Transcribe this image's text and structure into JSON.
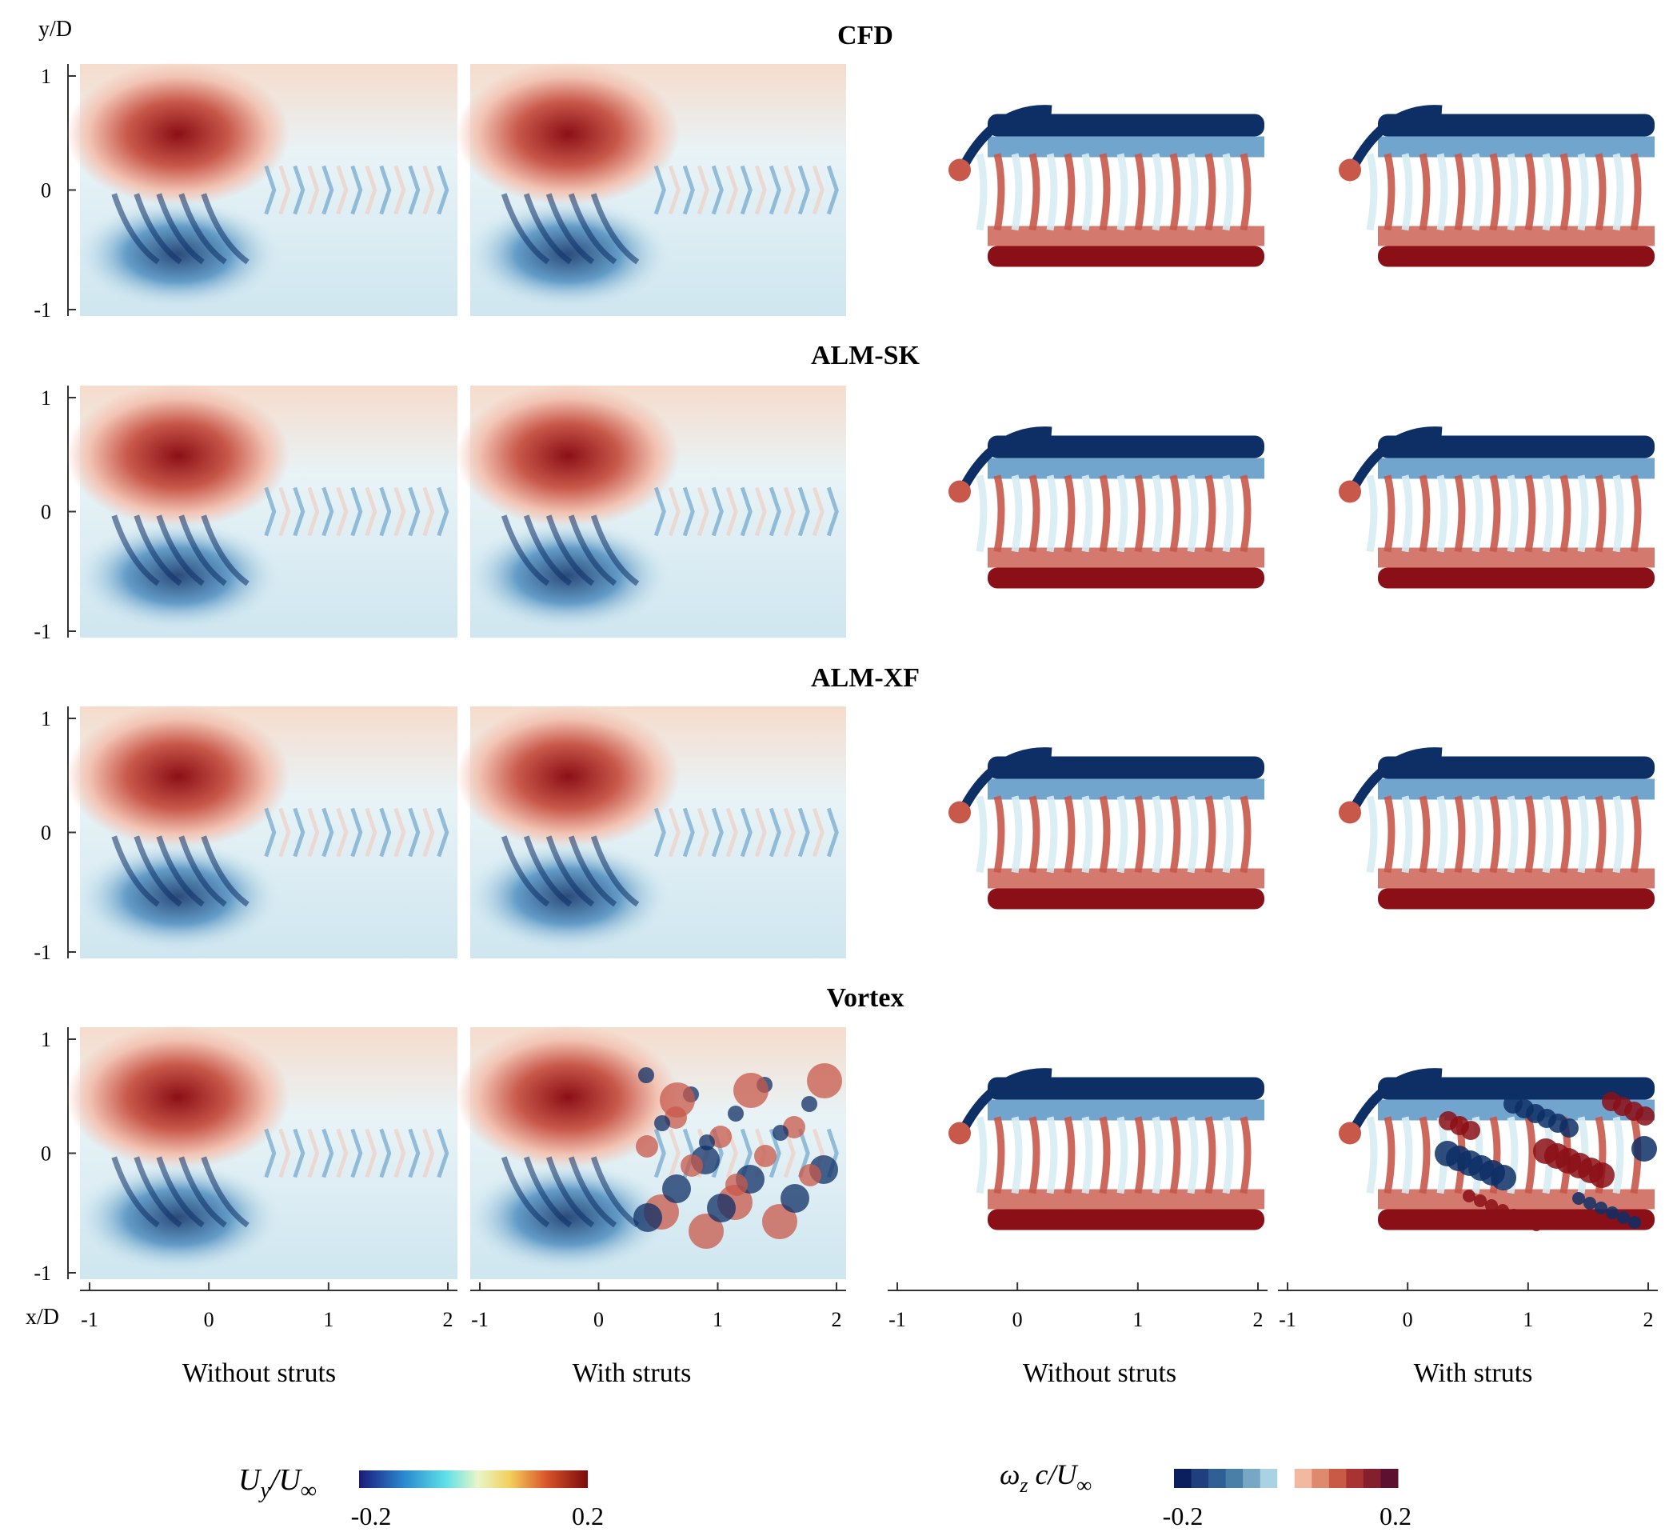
{
  "axis": {
    "y_label": "y/D",
    "x_label": "x/D",
    "y_ticks": [
      "1",
      "0",
      "-1"
    ],
    "x_ticks": [
      "-1",
      "0",
      "1",
      "2"
    ]
  },
  "rows": [
    {
      "id": "cfd",
      "title": "CFD"
    },
    {
      "id": "alm-sk",
      "title": "ALM-SK"
    },
    {
      "id": "alm-xf",
      "title": "ALM-XF"
    },
    {
      "id": "vortex",
      "title": "Vortex"
    }
  ],
  "columns": [
    {
      "id": "uy-without",
      "label": "Without struts"
    },
    {
      "id": "uy-with",
      "label": "With struts"
    },
    {
      "id": "wz-without",
      "label": "Without struts"
    },
    {
      "id": "wz-with",
      "label": "With struts"
    }
  ],
  "colorbars": [
    {
      "id": "uy",
      "label_main": "U",
      "label_sub": "y",
      "label_den": "/U",
      "label_den_sub": "∞",
      "min": "-0.2",
      "max": "0.2"
    },
    {
      "id": "wz",
      "label_main": "ω",
      "label_sub": "z",
      "label_mid": " c/U",
      "label_den_sub": "∞",
      "min": "-0.2",
      "max": "0.2",
      "levels": [
        "#0b1f5e",
        "#1f3f7f",
        "#2f5f95",
        "#4a7fa8",
        "#77a7c4",
        "#a9d2e2",
        "#ffffff",
        "#f2b8a0",
        "#df8a6e",
        "#c95a46",
        "#a93232",
        "#841f2e",
        "#5e1030"
      ]
    }
  ],
  "colors": {
    "red_dark": "#8b0f16",
    "red_mid": "#c8584a",
    "red_light": "#f2c4b4",
    "blue_dark": "#0d2f66",
    "blue_mid": "#4f8fc0",
    "blue_light": "#d6ecf2"
  }
}
